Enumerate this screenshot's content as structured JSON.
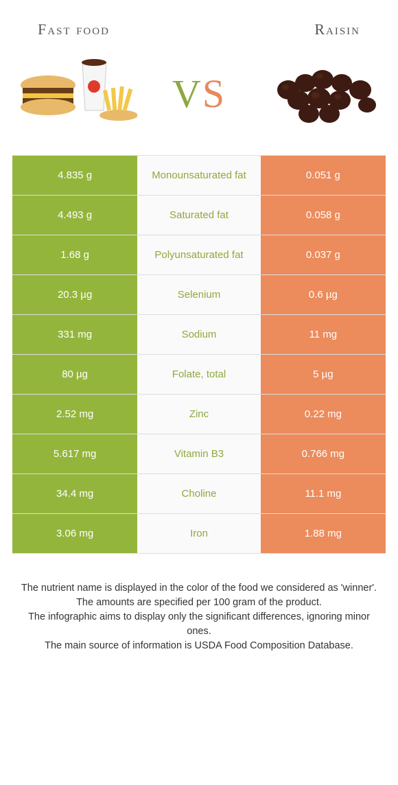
{
  "colors": {
    "left_bg": "#94b53c",
    "right_bg": "#ec8b5c",
    "left_text": "#8fa83f",
    "right_text": "#e58a5e",
    "cell_text": "#ffffff",
    "border": "#dddddd"
  },
  "header": {
    "left": "Fast food",
    "right": "Raisin"
  },
  "vs": {
    "v": "V",
    "s": "S"
  },
  "rows": [
    {
      "left": "4.835 g",
      "mid": "Monounsaturated fat",
      "right": "0.051 g",
      "winner": "left"
    },
    {
      "left": "4.493 g",
      "mid": "Saturated fat",
      "right": "0.058 g",
      "winner": "left"
    },
    {
      "left": "1.68 g",
      "mid": "Polyunsaturated fat",
      "right": "0.037 g",
      "winner": "left"
    },
    {
      "left": "20.3 µg",
      "mid": "Selenium",
      "right": "0.6 µg",
      "winner": "left"
    },
    {
      "left": "331 mg",
      "mid": "Sodium",
      "right": "11 mg",
      "winner": "left"
    },
    {
      "left": "80 µg",
      "mid": "Folate, total",
      "right": "5 µg",
      "winner": "left"
    },
    {
      "left": "2.52 mg",
      "mid": "Zinc",
      "right": "0.22 mg",
      "winner": "left"
    },
    {
      "left": "5.617 mg",
      "mid": "Vitamin B3",
      "right": "0.766 mg",
      "winner": "left"
    },
    {
      "left": "34.4 mg",
      "mid": "Choline",
      "right": "11.1 mg",
      "winner": "left"
    },
    {
      "left": "3.06 mg",
      "mid": "Iron",
      "right": "1.88 mg",
      "winner": "left"
    }
  ],
  "footnote": {
    "l1": "The nutrient name is displayed in the color of the food we considered as 'winner'.",
    "l2": "The amounts are specified per 100 gram of the product.",
    "l3": "The infographic aims to display only the significant differences, ignoring minor ones.",
    "l4": "The main source of information is USDA Food Composition Database."
  }
}
